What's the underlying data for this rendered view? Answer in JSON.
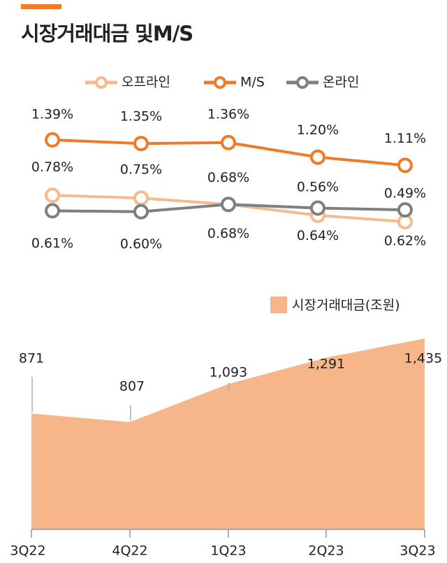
{
  "chart_data": [
    {
      "type": "line",
      "title": "시장거래대금 및M/S",
      "series": [
        {
          "name": "오프라인",
          "color": "#f8b98c",
          "values": [
            0.78,
            0.75,
            0.68,
            0.56,
            0.49
          ],
          "value_labels": [
            "0.78%",
            "0.75%",
            "0.68%",
            "0.56%",
            "0.49%"
          ]
        },
        {
          "name": "M/S",
          "color": "#f07a28",
          "values": [
            1.39,
            1.35,
            1.36,
            1.2,
            1.11
          ],
          "value_labels": [
            "1.39%",
            "1.35%",
            "1.36%",
            "1.20%",
            "1.11%"
          ]
        },
        {
          "name": "온라인",
          "color": "#7f7f7f",
          "values": [
            0.61,
            0.6,
            0.68,
            0.64,
            0.62
          ],
          "value_labels": [
            "0.61%",
            "0.60%",
            "0.68%",
            "0.64%",
            "0.62%"
          ]
        }
      ]
    },
    {
      "type": "area",
      "categories": [
        "3Q22",
        "4Q22",
        "1Q23",
        "2Q23",
        "3Q23"
      ],
      "series": [
        {
          "name": "시장거래대금(조원)",
          "color": "#f6b68a",
          "values": [
            871,
            807,
            1093,
            1291,
            1435
          ],
          "value_labels": [
            "871",
            "807",
            "1,093",
            "1,291",
            "1,435"
          ]
        }
      ]
    }
  ]
}
